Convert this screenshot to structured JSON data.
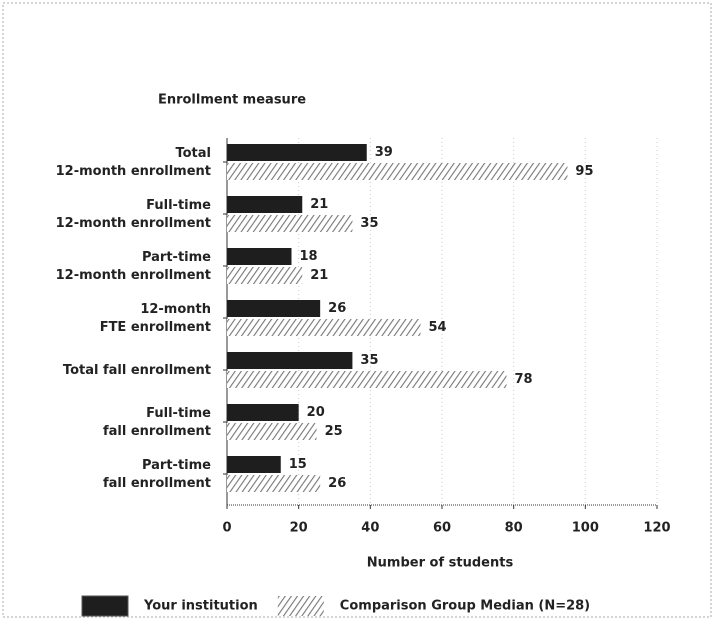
{
  "chart_data": {
    "type": "hbar",
    "y_axis_title": "Enrollment measure",
    "x_axis_title": "Number of students",
    "categories": [
      [
        "Total",
        "12-month enrollment"
      ],
      [
        "Full-time",
        "12-month enrollment"
      ],
      [
        "Part-time",
        "12-month enrollment"
      ],
      [
        "12-month",
        "FTE enrollment"
      ],
      [
        "Total fall enrollment"
      ],
      [
        "Full-time",
        "fall enrollment"
      ],
      [
        "Part-time",
        "fall enrollment"
      ]
    ],
    "series": [
      {
        "name": "Your institution",
        "color": "#1e1e1e",
        "values": [
          39,
          21,
          18,
          26,
          35,
          20,
          15
        ]
      },
      {
        "name": "Comparison Group Median (N=28)",
        "color": "#9a9a9a",
        "pattern": "hatch",
        "values": [
          95,
          35,
          21,
          54,
          78,
          25,
          26
        ]
      }
    ],
    "xlim": [
      0,
      120
    ],
    "xticks": [
      0,
      20,
      40,
      60,
      80,
      100,
      120
    ],
    "grid": true,
    "legend": "bottom"
  }
}
